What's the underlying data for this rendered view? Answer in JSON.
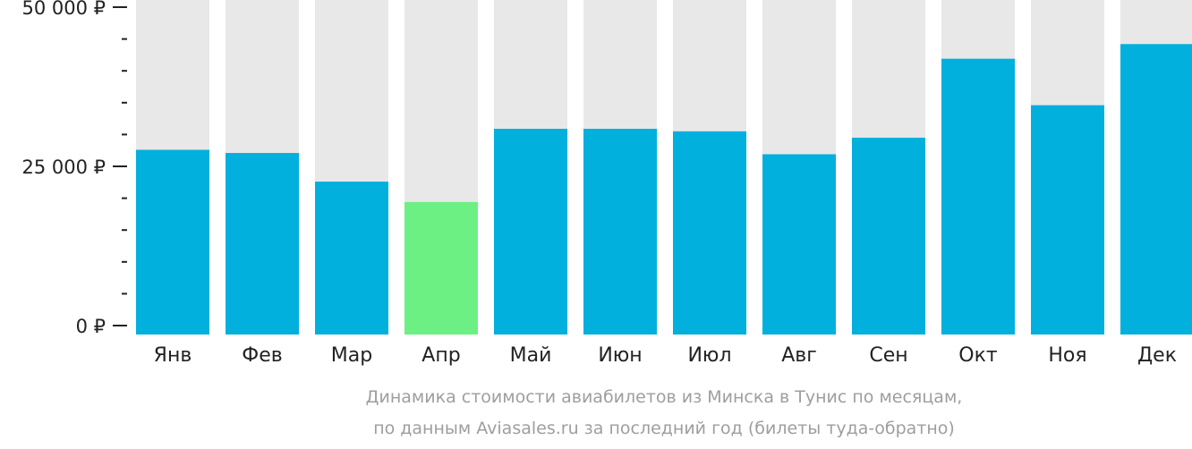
{
  "chart_data": {
    "type": "bar",
    "categories": [
      "Янв",
      "Фев",
      "Мар",
      "Апр",
      "Май",
      "Июн",
      "Июл",
      "Авг",
      "Сен",
      "Окт",
      "Ноя",
      "Дек"
    ],
    "values": [
      27600,
      27100,
      22600,
      19400,
      30900,
      30900,
      30500,
      26900,
      29500,
      41900,
      34600,
      44200
    ],
    "ylim": [
      0,
      50000
    ],
    "yticks": [
      {
        "value": 0,
        "label": "0 ₽"
      },
      {
        "value": 25000,
        "label": "25 000 ₽"
      },
      {
        "value": 50000,
        "label": "50 000 ₽"
      }
    ],
    "minor_tick_step": 5000,
    "highlight_index": 3,
    "colors": {
      "bar": "#02b0dd",
      "highlight": "#6cf084",
      "background_column": "#e8e8e8",
      "axis": "#222222"
    },
    "caption": [
      "Динамика стоимости авиабилетов из Минска в Тунис по месяцам,",
      "по данным Aviasales.ru за последний год (билеты туда-обратно)"
    ]
  }
}
